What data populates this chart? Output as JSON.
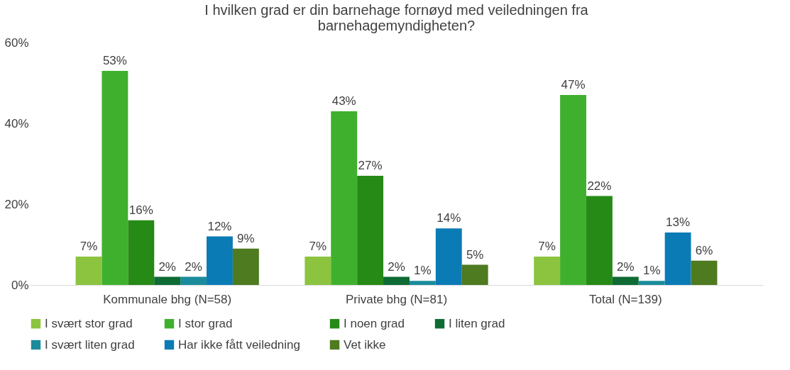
{
  "chart_data": {
    "type": "bar",
    "title": "I hvilken grad er din barnehage fornøyd med veiledningen fra barnehagemyndigheten?",
    "categories": [
      "Kommunale bhg (N=58)",
      "Private bhg (N=81)",
      "Total (N=139)"
    ],
    "series": [
      {
        "name": "I svært stor grad",
        "color": "#8cc43f",
        "values": [
          7,
          7,
          7
        ],
        "value_labels": [
          "7%",
          "7%",
          "7%"
        ]
      },
      {
        "name": "I stor grad",
        "color": "#3fb02e",
        "values": [
          53,
          43,
          47
        ],
        "value_labels": [
          "53%",
          "43%",
          "47%"
        ]
      },
      {
        "name": "I noen grad",
        "color": "#268a16",
        "values": [
          16,
          27,
          22
        ],
        "value_labels": [
          "16%",
          "27%",
          "22%"
        ]
      },
      {
        "name": "I liten grad",
        "color": "#0e6b34",
        "values": [
          2,
          2,
          2
        ],
        "value_labels": [
          "2%",
          "2%",
          "2%"
        ]
      },
      {
        "name": "I svært liten grad",
        "color": "#1b8c9c",
        "values": [
          2,
          1,
          1
        ],
        "value_labels": [
          "2%",
          "1%",
          "1%"
        ]
      },
      {
        "name": "Har ikke fått veiledning",
        "color": "#0b7bb6",
        "values": [
          12,
          14,
          13
        ],
        "value_labels": [
          "12%",
          "14%",
          "13%"
        ]
      },
      {
        "name": "Vet ikke",
        "color": "#4e7a20",
        "values": [
          9,
          5,
          6
        ],
        "value_labels": [
          "9%",
          "5%",
          "6%"
        ]
      }
    ],
    "ylim": [
      0,
      60
    ],
    "yticks": [
      {
        "value": 0,
        "label": "0%"
      },
      {
        "value": 20,
        "label": "20%"
      },
      {
        "value": 40,
        "label": "40%"
      },
      {
        "value": 60,
        "label": "60%"
      }
    ],
    "grid": false,
    "legend": "bottom"
  }
}
